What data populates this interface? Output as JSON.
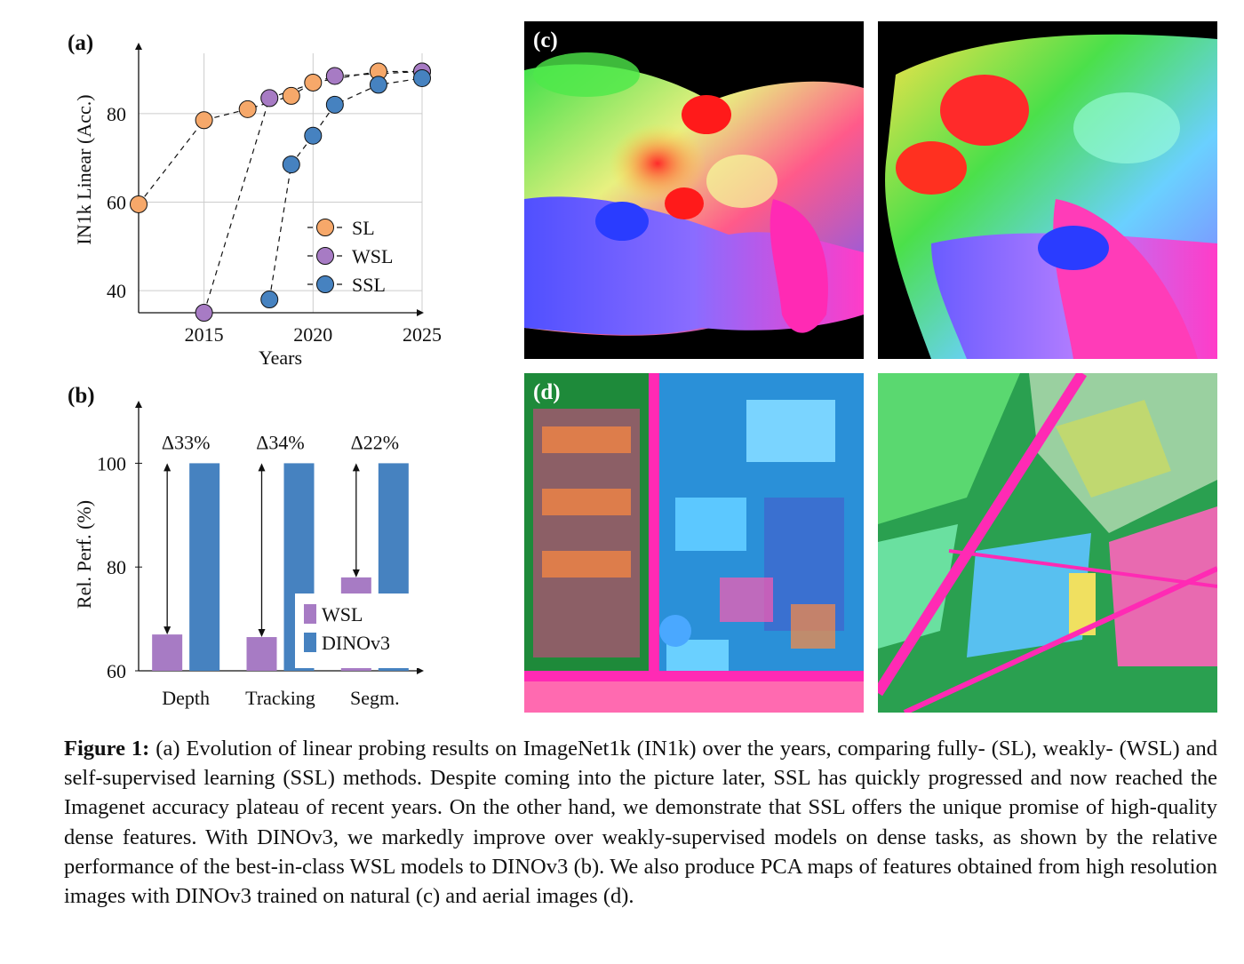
{
  "chart_data": [
    {
      "panel_label": "(a)",
      "type": "line",
      "xlabel": "Years",
      "ylabel": "IN1k Linear (Acc.)",
      "xlim": [
        2012,
        2025
      ],
      "ylim": [
        35,
        90
      ],
      "xticks": [
        "2015",
        "2020",
        "2025"
      ],
      "yticks": [
        "40",
        "60",
        "80"
      ],
      "grid": true,
      "legend_position": "center-right",
      "series": [
        {
          "name": "SL",
          "color": "#f6a86a",
          "x": [
            2012,
            2015,
            2017,
            2019,
            2020,
            2023,
            2025
          ],
          "y": [
            59.5,
            78.5,
            81,
            84,
            87,
            89.5,
            89.5
          ]
        },
        {
          "name": "WSL",
          "color": "#a77bc4",
          "x": [
            2015,
            2018,
            2021,
            2025
          ],
          "y": [
            35,
            83.5,
            88.5,
            89.5
          ]
        },
        {
          "name": "SSL",
          "color": "#4682c0",
          "x": [
            2018,
            2019,
            2020,
            2021,
            2023,
            2025
          ],
          "y": [
            38,
            68.5,
            75,
            82,
            86.5,
            88
          ]
        }
      ]
    },
    {
      "panel_label": "(b)",
      "type": "bar",
      "ylabel": "Rel. Perf. (%)",
      "ylim": [
        60,
        110
      ],
      "yticks": [
        "60",
        "80",
        "100"
      ],
      "categories": [
        "Depth",
        "Tracking",
        "Segm."
      ],
      "legend_position": "bottom-right",
      "series": [
        {
          "name": "WSL",
          "color": "#a77bc4",
          "values": [
            67,
            66.5,
            78
          ]
        },
        {
          "name": "DINOv3",
          "color": "#4682c0",
          "values": [
            100,
            100,
            100
          ]
        }
      ],
      "annotations": [
        "Δ33%",
        "Δ34%",
        "Δ22%"
      ]
    }
  ],
  "panels": {
    "c_label": "(c)",
    "d_label": "(d)"
  },
  "caption": {
    "label": "Figure 1:",
    "text": " (a) Evolution of linear probing results on ImageNet1k (IN1k) over the years, comparing fully- (SL), weakly- (WSL) and self-supervised learning (SSL) methods. Despite coming into the picture later, SSL has quickly progressed and now reached the Imagenet accuracy plateau of recent years. On the other hand, we demonstrate that SSL offers the unique promise of high-quality dense features. With DINOv3, we markedly improve over weakly-supervised models on dense tasks, as shown by the relative performance of the best-in-class WSL models to DINOv3 (b). We also produce PCA maps of features obtained from high resolution images with DINOv3 trained on natural (c) and aerial images (d)."
  }
}
